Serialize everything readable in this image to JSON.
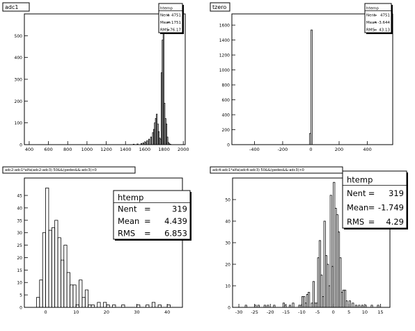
{
  "chart_data": [
    {
      "type": "bar",
      "title": "adc1",
      "stats": {
        "name": "htemp",
        "entries": "4751",
        "mean": "1751",
        "rms": "76.17"
      },
      "stats_labels": {
        "entries": "Nent",
        "mean": "Mean",
        "rms": "RMS"
      },
      "xlim": [
        350,
        2020
      ],
      "ylim": [
        0,
        600
      ],
      "xticks": [
        400,
        600,
        800,
        1000,
        1200,
        1400,
        1600,
        1800,
        2000
      ],
      "xtick_labels": [
        "400",
        "600",
        "800",
        "1000",
        "1200",
        "1400",
        "1600",
        "1800",
        "2000"
      ],
      "yticks": [
        0,
        100,
        200,
        300,
        400,
        500
      ],
      "ytick_labels": [
        "0",
        "100",
        "200",
        "300",
        "400",
        "500"
      ],
      "bin_width": 10,
      "x": [
        1480,
        1520,
        1560,
        1580,
        1600,
        1620,
        1640,
        1660,
        1680,
        1690,
        1700,
        1710,
        1720,
        1730,
        1740,
        1750,
        1760,
        1770,
        1780,
        1790,
        1800,
        1810,
        1820,
        1830,
        1840,
        1850,
        1860
      ],
      "values": [
        2,
        3,
        5,
        8,
        12,
        18,
        25,
        35,
        55,
        70,
        100,
        120,
        140,
        95,
        60,
        30,
        25,
        330,
        480,
        600,
        190,
        120,
        95,
        35,
        10,
        4,
        2
      ]
    },
    {
      "type": "bar",
      "title": "tzero",
      "stats": {
        "name": "htemp",
        "entries": "4751",
        "mean": "-3.644",
        "rms": "43.13"
      },
      "stats_labels": {
        "entries": "Nent",
        "mean": "Mean",
        "rms": "RMS"
      },
      "xlim": [
        -560,
        580
      ],
      "ylim": [
        0,
        1750
      ],
      "xticks": [
        -400,
        -200,
        0,
        200,
        400
      ],
      "xtick_labels": [
        "-400",
        "-200",
        "0",
        "200",
        "400"
      ],
      "yticks": [
        0,
        200,
        400,
        600,
        800,
        1000,
        1200,
        1400,
        1600
      ],
      "ytick_labels": [
        "0",
        "200",
        "400",
        "600",
        "800",
        "1000",
        "1200",
        "1400",
        "1600"
      ],
      "bin_width": 10,
      "x": [
        -10,
        0
      ],
      "values": [
        150,
        1535
      ]
    },
    {
      "type": "bar",
      "title": "adc2-adc1*alfa(adc2-adc3) 50&&(pedes&&-adc3)>0",
      "stats": {
        "name": "htemp",
        "entries": "319",
        "mean": "4.439",
        "rms": "6.853"
      },
      "stats_labels": {
        "entries": "Nent",
        "mean": "Mean",
        "rms": "RMS"
      },
      "xlim": [
        -7,
        45
      ],
      "ylim": [
        0,
        52
      ],
      "xticks": [
        0,
        10,
        20,
        30,
        40
      ],
      "xtick_labels": [
        "0",
        "10",
        "20",
        "30",
        "40"
      ],
      "yticks": [
        0,
        5,
        10,
        15,
        20,
        25,
        30,
        35,
        40,
        45
      ],
      "ytick_labels": [
        "0",
        "5",
        "10",
        "15",
        "20",
        "25",
        "30",
        "35",
        "40",
        "45"
      ],
      "bin_width": 1,
      "x": [
        -3,
        -2,
        -1,
        0,
        1,
        2,
        3,
        4,
        5,
        6,
        7,
        8,
        9,
        10,
        11,
        12,
        13,
        14,
        15,
        17,
        19,
        20,
        22,
        25,
        30,
        33,
        35,
        37,
        40
      ],
      "values": [
        4,
        11,
        30,
        48,
        31,
        32,
        35,
        28,
        19,
        25,
        14,
        9,
        9,
        1,
        11,
        4,
        7,
        1,
        1,
        2,
        2,
        1,
        1,
        1,
        1,
        1,
        2,
        1,
        1
      ]
    },
    {
      "type": "bar",
      "title": "adc4-adc1*alfa(adc4-adc3) 50&&(pedes&&-adc3)>0",
      "stats": {
        "name": "htemp",
        "entries": "319",
        "mean": "-1.749",
        "rms": "4.29"
      },
      "stats_labels": {
        "entries": "Nent",
        "mean": "Mean",
        "rms": "RMS"
      },
      "xlim": [
        -32,
        18
      ],
      "ylim": [
        0,
        60
      ],
      "xticks": [
        -30,
        -25,
        -20,
        -15,
        -10,
        -5,
        0,
        5,
        10,
        15
      ],
      "xtick_labels": [
        "-30",
        "-25",
        "-20",
        "-15",
        "-10",
        "-5",
        "0",
        "5",
        "10",
        "15"
      ],
      "yticks": [
        0,
        10,
        20,
        30,
        40,
        50
      ],
      "ytick_labels": [
        "0",
        "10",
        "20",
        "30",
        "40",
        "50"
      ],
      "bin_width": 0.5,
      "x": [
        -28,
        -25,
        -24,
        -22,
        -21,
        -19,
        -16,
        -15.5,
        -14,
        -13,
        -11,
        -10.5,
        -10,
        -9.5,
        -9,
        -8.5,
        -8,
        -7,
        -6.5,
        -6,
        -5.5,
        -5,
        -4.5,
        -4,
        -3.5,
        -3,
        -2.5,
        -2,
        -1.5,
        -1,
        -0.5,
        0,
        0.5,
        1,
        1.5,
        2,
        2.5,
        3,
        3.5,
        4,
        5,
        6,
        7,
        8,
        9,
        10,
        12,
        14
      ],
      "values": [
        1,
        1,
        1,
        1,
        1,
        1,
        2,
        1,
        1,
        2,
        1,
        1,
        5,
        5,
        2,
        6,
        7,
        2,
        12,
        2,
        2,
        23,
        31,
        15,
        5,
        40,
        24,
        20,
        10,
        52,
        19,
        58,
        46,
        43,
        35,
        23,
        7,
        8,
        8,
        3,
        3,
        2,
        1,
        1,
        1,
        1,
        1,
        1
      ]
    }
  ]
}
